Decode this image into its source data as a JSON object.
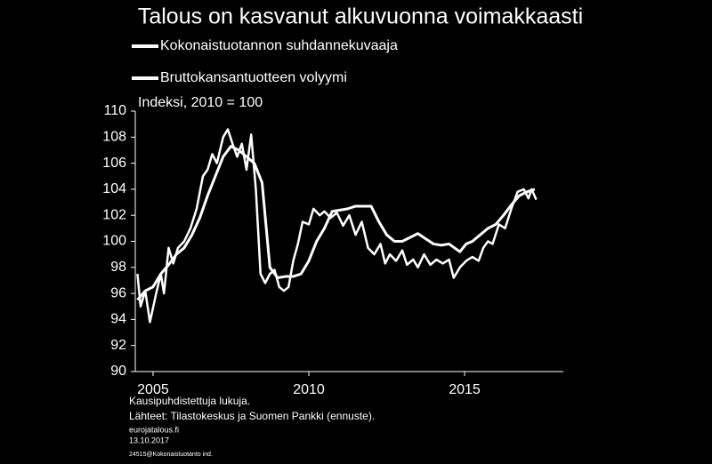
{
  "chart_data": {
    "type": "line",
    "title": "Talous on kasvanut alkuvuonna voimakkaasti",
    "y_label": "Indeksi, 2010 = 100",
    "notes": [
      "Kausipuhdistettuja lukuja.",
      "Lähteet: Tilastokeskus ja Suomen Pankki (ennuste).",
      "eurojatalous.fi",
      "13.10.2017",
      "24515@Kokonaistuotanto ind."
    ],
    "xlim": [
      2004.43,
      2018.17
    ],
    "xticks": [
      2005,
      2010,
      2015
    ],
    "ylim": [
      90,
      110
    ],
    "yticks": [
      90,
      92,
      94,
      96,
      98,
      100,
      102,
      104,
      106,
      108,
      110
    ],
    "series": [
      {
        "name": "Kokonaistuotannon suhdannekuvaaja",
        "color": "#ffffff",
        "x": [
          2004.5,
          2004.6,
          2004.75,
          2004.9,
          2005.1,
          2005.25,
          2005.35,
          2005.5,
          2005.65,
          2005.8,
          2006,
          2006.2,
          2006.4,
          2006.6,
          2006.75,
          2006.9,
          2007.05,
          2007.25,
          2007.4,
          2007.55,
          2007.7,
          2007.85,
          2008,
          2008.15,
          2008.3,
          2008.45,
          2008.6,
          2008.75,
          2008.9,
          2009.05,
          2009.2,
          2009.35,
          2009.5,
          2009.65,
          2009.8,
          2010,
          2010.15,
          2010.35,
          2010.5,
          2010.7,
          2010.9,
          2011.1,
          2011.3,
          2011.5,
          2011.7,
          2011.9,
          2012.1,
          2012.3,
          2012.45,
          2012.6,
          2012.8,
          2013,
          2013.15,
          2013.35,
          2013.5,
          2013.7,
          2013.9,
          2014.1,
          2014.3,
          2014.5,
          2014.65,
          2014.85,
          2015.05,
          2015.25,
          2015.45,
          2015.6,
          2015.75,
          2015.9,
          2016.1,
          2016.3,
          2016.5,
          2016.7,
          2016.9,
          2017.05,
          2017.15,
          2017.3
        ],
        "values": [
          97.5,
          95,
          96.2,
          93.8,
          96,
          97.5,
          96,
          99.5,
          98.3,
          99.5,
          100,
          101,
          102.5,
          105,
          105.5,
          106.7,
          106,
          108,
          108.6,
          107.5,
          106.5,
          107.5,
          105.5,
          108.2,
          104,
          97.5,
          96.8,
          97.5,
          97.8,
          96.5,
          96.2,
          96.5,
          98.5,
          99.8,
          101.5,
          101.3,
          102.5,
          102,
          102.3,
          101.8,
          102.2,
          101.2,
          102,
          100.5,
          101.5,
          99.5,
          99,
          99.8,
          98.3,
          99,
          98.5,
          99.3,
          98.2,
          98.6,
          98,
          99,
          98.2,
          98.6,
          98.3,
          98.6,
          97.2,
          98,
          98.5,
          98.8,
          98.5,
          99.5,
          100,
          99.8,
          101.3,
          101,
          102.5,
          103.8,
          104,
          103.3,
          104,
          103.2
        ]
      },
      {
        "name": "Bruttokansantuotteen volyymi",
        "color": "#ffffff",
        "x": [
          2004.5,
          2004.75,
          2005,
          2005.25,
          2005.5,
          2005.75,
          2006,
          2006.25,
          2006.5,
          2006.75,
          2007,
          2007.25,
          2007.5,
          2007.75,
          2008,
          2008.25,
          2008.5,
          2008.75,
          2009,
          2009.25,
          2009.5,
          2009.75,
          2010,
          2010.25,
          2010.5,
          2010.75,
          2011,
          2011.25,
          2011.5,
          2011.75,
          2012,
          2012.25,
          2012.5,
          2012.75,
          2013,
          2013.25,
          2013.5,
          2013.75,
          2014,
          2014.25,
          2014.5,
          2014.85,
          2015.05,
          2015.25,
          2015.5,
          2015.75,
          2016,
          2016.25,
          2016.5,
          2016.75,
          2017,
          2017.25
        ],
        "values": [
          95.5,
          96.2,
          96.5,
          97.5,
          98.2,
          99,
          99.5,
          100.5,
          101.8,
          103.5,
          105,
          106.5,
          107.3,
          107,
          106.5,
          106,
          104.5,
          98,
          97.2,
          97.3,
          97.3,
          97.5,
          98.5,
          100,
          101,
          102.3,
          102.4,
          102.5,
          102.7,
          102.7,
          102.7,
          101.5,
          100.5,
          100,
          100,
          100.3,
          100.6,
          100.2,
          99.8,
          99.7,
          99.8,
          99.2,
          99.8,
          100,
          100.5,
          101,
          101.3,
          102,
          102.8,
          103.5,
          103.8,
          104
        ]
      }
    ]
  }
}
